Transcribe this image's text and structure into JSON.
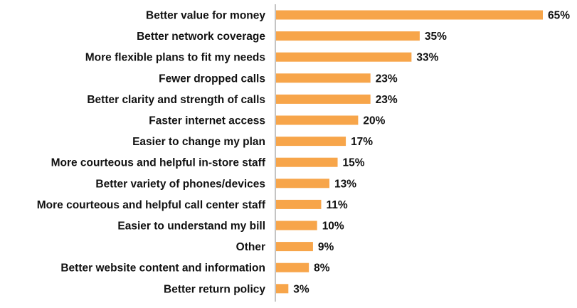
{
  "chart_data": {
    "type": "bar",
    "orientation": "horizontal",
    "title": "",
    "xlabel": "",
    "ylabel": "",
    "categories": [
      "Better value for money",
      "Better network coverage",
      "More flexible plans to fit my needs",
      "Fewer dropped calls",
      "Better clarity and strength of calls",
      "Faster internet access",
      "Easier to change my plan",
      "More courteous and helpful in-store staff",
      "Better variety of phones/devices",
      "More courteous and helpful call center staff",
      "Easier to understand my bill",
      "Other",
      "Better website content and information",
      "Better return policy"
    ],
    "values": [
      65,
      35,
      33,
      23,
      23,
      20,
      17,
      15,
      13,
      11,
      10,
      9,
      8,
      3
    ],
    "value_labels": [
      "65%",
      "35%",
      "33%",
      "23%",
      "23%",
      "20%",
      "17%",
      "15%",
      "13%",
      "11%",
      "10%",
      "9%",
      "8%",
      "3%"
    ],
    "xlim": [
      0,
      70
    ],
    "grid": false,
    "legend": "none",
    "colors": {
      "bar": "#F7A54A",
      "text": "#111111",
      "axis": "#8a8a8a"
    }
  }
}
